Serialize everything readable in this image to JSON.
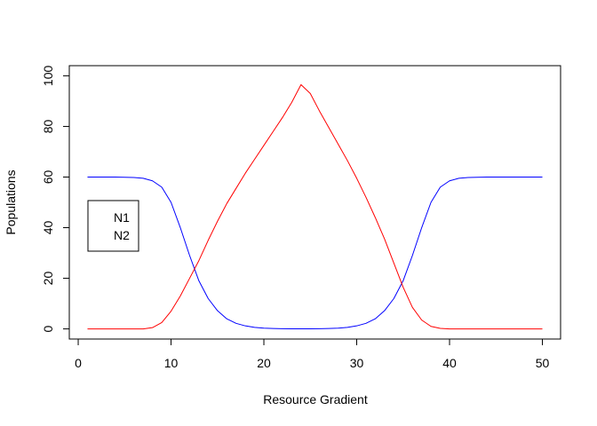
{
  "chart_data": {
    "type": "line",
    "title": "",
    "xlabel": "Resource Gradient",
    "ylabel": "Populations",
    "xlim": [
      -0.96,
      51.96
    ],
    "ylim": [
      -4,
      104
    ],
    "xticks": [
      0,
      10,
      20,
      30,
      40,
      50
    ],
    "yticks": [
      0,
      20,
      40,
      60,
      80,
      100
    ],
    "grid": false,
    "legend": {
      "position": "left",
      "entries": [
        "N1",
        "N2"
      ]
    },
    "x": [
      1,
      2,
      3,
      4,
      5,
      6,
      7,
      8,
      9,
      10,
      11,
      12,
      13,
      14,
      15,
      16,
      17,
      18,
      19,
      20,
      21,
      22,
      23,
      24,
      25,
      26,
      27,
      28,
      29,
      30,
      31,
      32,
      33,
      34,
      35,
      36,
      37,
      38,
      39,
      40,
      41,
      42,
      43,
      44,
      45,
      46,
      47,
      48,
      49,
      50
    ],
    "series": [
      {
        "name": "N1",
        "color": "#0000ff",
        "values": [
          60,
          60,
          60,
          60,
          59.9,
          59.8,
          59.5,
          58.5,
          56,
          50,
          40,
          29,
          19,
          12,
          7.2,
          4,
          2.2,
          1.2,
          0.6,
          0.3,
          0.15,
          0.08,
          0.05,
          0.05,
          0.05,
          0.08,
          0.15,
          0.3,
          0.6,
          1.2,
          2.2,
          4,
          7.2,
          12,
          19,
          29,
          40,
          50,
          56,
          58.5,
          59.5,
          59.8,
          59.9,
          60,
          60,
          60,
          60,
          60,
          60,
          60
        ]
      },
      {
        "name": "N2",
        "color": "#ff0000",
        "values": [
          0,
          0,
          0,
          0,
          0,
          0,
          0,
          0.5,
          2.5,
          7,
          13,
          20,
          27,
          35,
          42.5,
          49.5,
          55.5,
          61.5,
          67,
          72.5,
          78,
          83.5,
          89.5,
          96.5,
          93,
          86,
          79.5,
          73,
          66.5,
          59.5,
          52,
          44,
          35.5,
          26,
          16.5,
          8.5,
          3.5,
          1,
          0.2,
          0,
          0,
          0,
          0,
          0,
          0,
          0,
          0,
          0,
          0,
          0
        ]
      }
    ]
  }
}
